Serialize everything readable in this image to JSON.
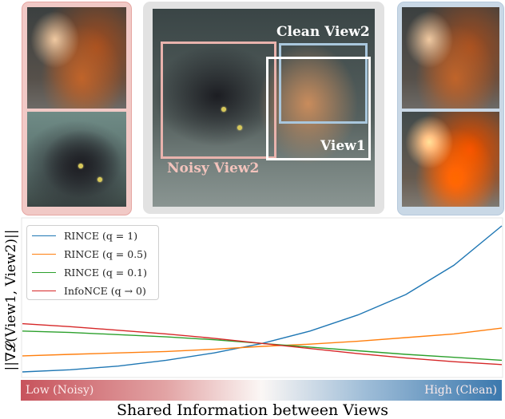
{
  "views": {
    "clean_view2_label": "Clean View2",
    "view1_label": "View1",
    "noisy_view2_label": "Noisy View2"
  },
  "colors": {
    "left_panel": "#f1c9c6",
    "left_panel_border": "#e6a6a2",
    "center_panel": "#e2e2e2",
    "right_panel": "#c9d8e6",
    "noisy_box": "#e9b3ad",
    "clean_box": "#a9c7dd",
    "view1_box": "#ffffff"
  },
  "chart_data": {
    "type": "line",
    "ylabel": "||∇𝓛(View1, View2)||",
    "xlabel": "Shared Information between Views",
    "x_low_label": "Low (Noisy)",
    "x_high_label": "High (Clean)",
    "x": [
      0,
      0.1,
      0.2,
      0.3,
      0.4,
      0.5,
      0.6,
      0.7,
      0.8,
      0.9,
      1.0
    ],
    "ylim": [
      0,
      1
    ],
    "grid": false,
    "legend_position": "top-left",
    "series": [
      {
        "name": "RINCE (q = 1)",
        "color": "#1f77b4",
        "values": [
          0.0,
          0.015,
          0.04,
          0.08,
          0.13,
          0.195,
          0.28,
          0.39,
          0.53,
          0.73,
          1.0
        ]
      },
      {
        "name": "RINCE (q = 0.5)",
        "color": "#ff7f0e",
        "values": [
          0.11,
          0.12,
          0.13,
          0.14,
          0.155,
          0.175,
          0.19,
          0.21,
          0.235,
          0.26,
          0.3
        ]
      },
      {
        "name": "RINCE (q = 0.1)",
        "color": "#2ca02c",
        "values": [
          0.28,
          0.27,
          0.255,
          0.24,
          0.22,
          0.195,
          0.17,
          0.145,
          0.12,
          0.1,
          0.08
        ]
      },
      {
        "name": "InfoNCE (q → 0)",
        "color": "#d62728",
        "values": [
          0.33,
          0.31,
          0.285,
          0.26,
          0.23,
          0.195,
          0.16,
          0.125,
          0.095,
          0.07,
          0.05
        ]
      }
    ]
  }
}
